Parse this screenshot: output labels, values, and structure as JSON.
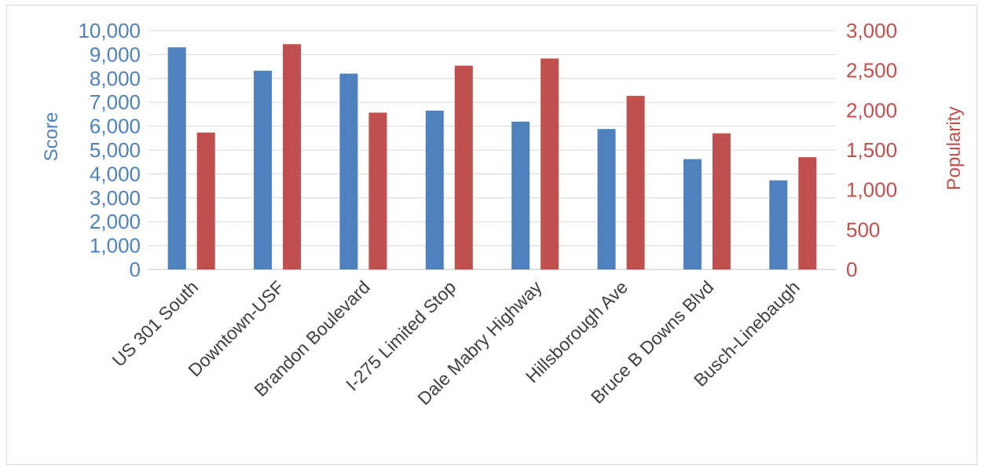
{
  "chart_data": {
    "type": "bar",
    "title": "",
    "categories": [
      "US 301 South",
      "Downtown-USF",
      "Brandon Boulevard",
      "I-275 Limited Stop",
      "Dale Mabry Highway",
      "Hillsborough Ave",
      "Bruce B Downs Blvd",
      "Busch-Linebaugh"
    ],
    "series": [
      {
        "name": "Score",
        "axis": "left",
        "color": "#4f81bd",
        "values": [
          9300,
          8320,
          8200,
          6650,
          6190,
          5880,
          4620,
          3730
        ]
      },
      {
        "name": "Popularity",
        "axis": "right",
        "color": "#c0504d",
        "values": [
          1720,
          2830,
          1970,
          2560,
          2650,
          2180,
          1710,
          1410
        ]
      }
    ],
    "ylabel": "Score",
    "ylabel_right": "Popularity",
    "ylim": [
      0,
      10000
    ],
    "ylim_right": [
      0,
      3000
    ],
    "yticks": [
      "0",
      "1,000",
      "2,000",
      "3,000",
      "4,000",
      "5,000",
      "6,000",
      "7,000",
      "8,000",
      "9,000",
      "10,000"
    ],
    "yticks_right": [
      "0",
      "500",
      "1,000",
      "1,500",
      "2,000",
      "2,500",
      "3,000"
    ],
    "grid": true,
    "legend": "none"
  }
}
